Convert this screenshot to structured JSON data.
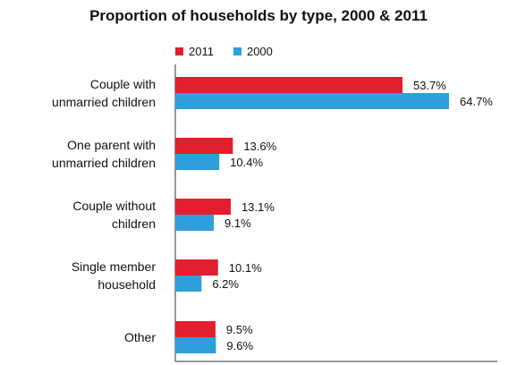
{
  "chart_data": {
    "type": "bar",
    "orientation": "horizontal",
    "title": "Proportion of households by type, 2000 & 2011",
    "categories": [
      [
        "Couple with",
        "unmarried children"
      ],
      [
        "One parent with",
        "unmarried children"
      ],
      [
        "Couple without",
        "children"
      ],
      [
        "Single member",
        "household"
      ],
      [
        "Other"
      ]
    ],
    "series": [
      {
        "name": "2011",
        "color": "#e31e2e",
        "values": [
          53.7,
          13.6,
          13.1,
          10.1,
          9.5
        ]
      },
      {
        "name": "2000",
        "color": "#2f9fdc",
        "values": [
          64.7,
          10.4,
          9.1,
          6.2,
          9.6
        ]
      }
    ],
    "value_suffix": "%",
    "legend_position": "top",
    "grid": false
  }
}
